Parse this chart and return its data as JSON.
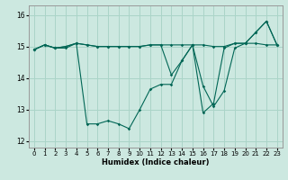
{
  "title": "",
  "xlabel": "Humidex (Indice chaleur)",
  "bg_color": "#cce8e0",
  "grid_color": "#aad4c8",
  "line_color": "#006655",
  "xlim": [
    -0.5,
    23.5
  ],
  "ylim": [
    11.8,
    16.3
  ],
  "yticks": [
    12,
    13,
    14,
    15,
    16
  ],
  "xticks": [
    0,
    1,
    2,
    3,
    4,
    5,
    6,
    7,
    8,
    9,
    10,
    11,
    12,
    13,
    14,
    15,
    16,
    17,
    18,
    19,
    20,
    21,
    22,
    23
  ],
  "series1_x": [
    0,
    1,
    2,
    3,
    4,
    5,
    6,
    7,
    8,
    9,
    10,
    11,
    12,
    13,
    14,
    15,
    16,
    17,
    18,
    19,
    20,
    21,
    22,
    23
  ],
  "series1_y": [
    14.9,
    15.05,
    14.95,
    14.95,
    15.1,
    12.55,
    12.55,
    12.65,
    12.55,
    12.4,
    13.0,
    13.65,
    13.8,
    13.8,
    14.55,
    15.05,
    13.75,
    13.1,
    13.6,
    14.95,
    15.1,
    15.45,
    15.8,
    15.05
  ],
  "series2_x": [
    0,
    1,
    2,
    3,
    4,
    5,
    6,
    7,
    8,
    9,
    10,
    11,
    12,
    13,
    14,
    15,
    16,
    17,
    18,
    19,
    20,
    21,
    22,
    23
  ],
  "series2_y": [
    14.9,
    15.05,
    14.95,
    15.0,
    15.1,
    15.05,
    15.0,
    15.0,
    15.0,
    15.0,
    15.0,
    15.05,
    15.05,
    15.05,
    15.05,
    15.05,
    15.05,
    15.0,
    15.0,
    15.1,
    15.1,
    15.1,
    15.05,
    15.05
  ],
  "series3_x": [
    0,
    1,
    2,
    3,
    4,
    5,
    6,
    7,
    8,
    9,
    10,
    11,
    12,
    13,
    14,
    15,
    16,
    17,
    18,
    19,
    20,
    21,
    22,
    23
  ],
  "series3_y": [
    14.9,
    15.05,
    14.95,
    15.0,
    15.1,
    15.05,
    15.0,
    15.0,
    15.0,
    15.0,
    15.0,
    15.05,
    15.05,
    14.1,
    14.55,
    15.05,
    12.9,
    13.2,
    14.95,
    15.1,
    15.1,
    15.45,
    15.8,
    15.05
  ]
}
